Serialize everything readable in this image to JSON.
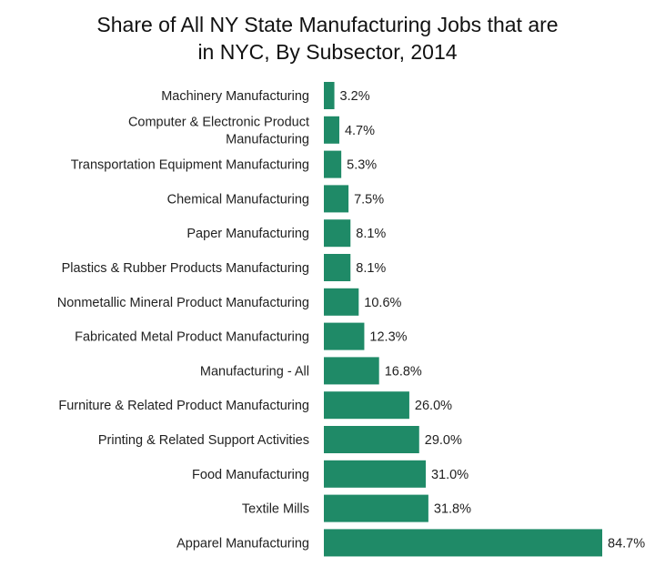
{
  "chart_data": {
    "type": "bar",
    "orientation": "horizontal",
    "title_lines": [
      "Share of All NY State Manufacturing Jobs that are",
      "in NYC, By Subsector, 2014"
    ],
    "categories": [
      [
        "Machinery Manufacturing"
      ],
      [
        "Computer & Electronic Product",
        "Manufacturing"
      ],
      [
        "Transportation Equipment Manufacturing"
      ],
      [
        "Chemical Manufacturing"
      ],
      [
        "Paper Manufacturing"
      ],
      [
        "Plastics & Rubber Products Manufacturing"
      ],
      [
        "Nonmetallic Mineral Product Manufacturing"
      ],
      [
        "Fabricated Metal Product Manufacturing"
      ],
      [
        "Manufacturing - All"
      ],
      [
        "Furniture & Related Product Manufacturing"
      ],
      [
        "Printing & Related Support Activities"
      ],
      [
        "Food Manufacturing"
      ],
      [
        "Textile Mills"
      ],
      [
        "Apparel Manufacturing"
      ]
    ],
    "values": [
      3.2,
      4.7,
      5.3,
      7.5,
      8.1,
      8.1,
      10.6,
      12.3,
      16.8,
      26.0,
      29.0,
      31.0,
      31.8,
      84.7
    ],
    "value_labels": [
      "3.2%",
      "4.7%",
      "5.3%",
      "7.5%",
      "8.1%",
      "8.1%",
      "10.6%",
      "12.3%",
      "16.8%",
      "26.0%",
      "29.0%",
      "31.0%",
      "31.8%",
      "84.7%"
    ],
    "xlim": [
      0,
      84.7
    ],
    "grid": false,
    "bar_color": "#1f8a67"
  }
}
